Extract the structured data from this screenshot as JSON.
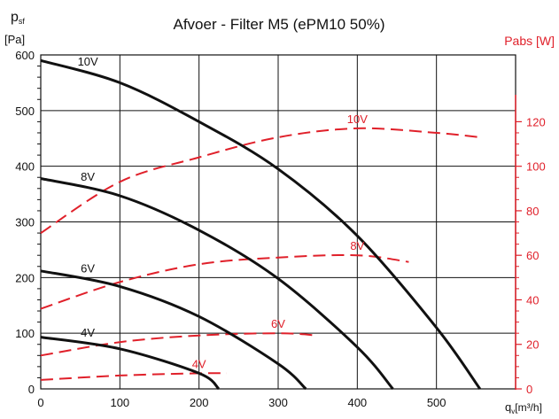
{
  "colors": {
    "pressure": "#111111",
    "power": "#e0202a",
    "grid": "#111111"
  },
  "chart_data": {
    "type": "line",
    "title": "Afvoer - Filter M5 (ePM10 50%)",
    "y_left_label_main": "p",
    "y_left_label_sub": "sf",
    "y_left_unit": "[Pa]",
    "y_right_label": "Pabs [W]",
    "x_label_main": "q",
    "x_label_sub": "v",
    "x_label_unit": "[m³/h]",
    "xlim": [
      0,
      600
    ],
    "ylim_left": [
      0,
      600
    ],
    "ylim_right": [
      0,
      150
    ],
    "x_ticks": [
      "0",
      "100",
      "200",
      "300",
      "400",
      "500"
    ],
    "y_left_ticks": [
      "0",
      "100",
      "200",
      "300",
      "400",
      "500",
      "600"
    ],
    "y_right_ticks": [
      "0",
      "20",
      "40",
      "60",
      "80",
      "100",
      "120"
    ],
    "grid": true,
    "pressure_series": [
      {
        "name": "10V",
        "x": [
          0,
          100,
          200,
          300,
          400,
          500,
          555
        ],
        "y": [
          590,
          550,
          480,
          395,
          275,
          110,
          0
        ]
      },
      {
        "name": "8V",
        "x": [
          0,
          100,
          200,
          300,
          400,
          445
        ],
        "y": [
          378,
          347,
          285,
          198,
          75,
          0
        ]
      },
      {
        "name": "6V",
        "x": [
          0,
          100,
          200,
          300,
          335
        ],
        "y": [
          212,
          184,
          130,
          45,
          0
        ]
      },
      {
        "name": "4V",
        "x": [
          0,
          100,
          200,
          225
        ],
        "y": [
          93,
          72,
          28,
          0
        ]
      }
    ],
    "power_series": [
      {
        "name": "10V",
        "x": [
          0,
          100,
          200,
          300,
          400,
          500,
          555
        ],
        "y": [
          70,
          93,
          104,
          113,
          117,
          115,
          113
        ]
      },
      {
        "name": "8V",
        "x": [
          0,
          100,
          200,
          300,
          400,
          465
        ],
        "y": [
          36,
          48,
          56,
          59,
          60,
          57
        ]
      },
      {
        "name": "6V",
        "x": [
          0,
          100,
          200,
          300,
          350
        ],
        "y": [
          15,
          21,
          24,
          25,
          24
        ]
      },
      {
        "name": "4V",
        "x": [
          0,
          100,
          200,
          235
        ],
        "y": [
          4,
          6,
          7,
          7
        ]
      }
    ]
  }
}
